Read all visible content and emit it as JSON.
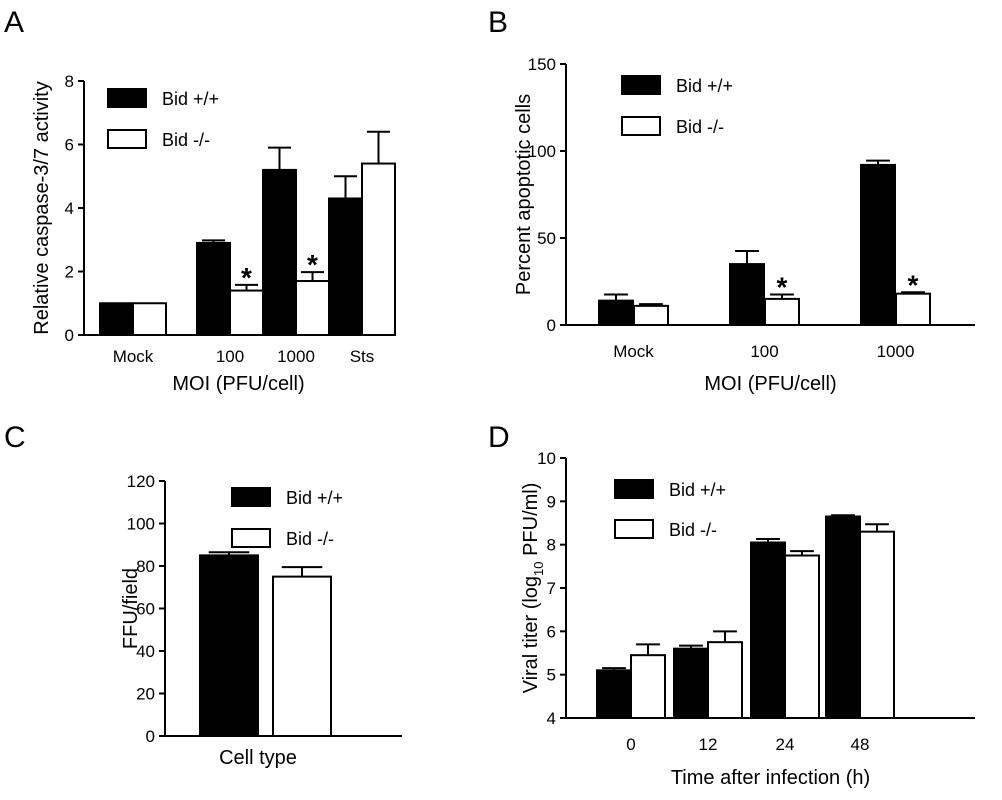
{
  "chart_data": [
    {
      "panel": "A",
      "type": "bar",
      "categories": [
        "Mock",
        "100",
        "1000",
        "Sts"
      ],
      "series": [
        {
          "name": "Bid +/+",
          "values": [
            1.0,
            2.9,
            5.2,
            4.3
          ],
          "errors": [
            0.0,
            0.08,
            0.7,
            0.7
          ]
        },
        {
          "name": "Bid -/-",
          "values": [
            1.0,
            1.4,
            1.7,
            5.4
          ],
          "errors": [
            0.0,
            0.18,
            0.28,
            1.0
          ]
        }
      ],
      "significant": [
        false,
        true,
        true,
        false
      ],
      "ylim": [
        0,
        8
      ],
      "yticks": [
        0,
        2,
        4,
        6,
        8
      ],
      "xlabel": "MOI (PFU/cell)",
      "ylabel": "Relative caspase-3/7 activity",
      "legend_position": "top-left"
    },
    {
      "panel": "B",
      "type": "bar",
      "categories": [
        "Mock",
        "100",
        "1000"
      ],
      "series": [
        {
          "name": "Bid +/+",
          "values": [
            14,
            35,
            92
          ],
          "errors": [
            3.5,
            7.5,
            2.5
          ]
        },
        {
          "name": "Bid -/-",
          "values": [
            11,
            15,
            18
          ],
          "errors": [
            1.0,
            2.5,
            0.8
          ]
        }
      ],
      "significant": [
        false,
        true,
        true
      ],
      "ylim": [
        0,
        150
      ],
      "yticks": [
        0,
        50,
        100,
        150
      ],
      "xlabel": "MOI (PFU/cell)",
      "ylabel": "Percent apoptotic cells",
      "legend_position": "top-left"
    },
    {
      "panel": "C",
      "type": "bar",
      "categories": [
        "Cell type"
      ],
      "series": [
        {
          "name": "Bid +/+",
          "values": [
            85
          ],
          "errors": [
            1.5
          ]
        },
        {
          "name": "Bid -/-",
          "values": [
            75
          ],
          "errors": [
            4.5
          ]
        }
      ],
      "significant": [
        false
      ],
      "ylim": [
        0,
        120
      ],
      "yticks": [
        0,
        20,
        40,
        60,
        80,
        100,
        120
      ],
      "xlabel": "",
      "ylabel": "FFU/field",
      "legend_position": "top-right"
    },
    {
      "panel": "D",
      "type": "bar",
      "categories": [
        "0",
        "12",
        "24",
        "48"
      ],
      "series": [
        {
          "name": "Bid +/+",
          "values": [
            5.1,
            5.6,
            8.05,
            8.65
          ],
          "errors": [
            0.05,
            0.07,
            0.08,
            0.03
          ]
        },
        {
          "name": "Bid -/-",
          "values": [
            5.45,
            5.75,
            7.75,
            8.3
          ],
          "errors": [
            0.25,
            0.25,
            0.1,
            0.17
          ]
        }
      ],
      "significant": [
        false,
        false,
        false,
        false
      ],
      "ylim": [
        4,
        10
      ],
      "yticks": [
        4,
        5,
        6,
        7,
        8,
        9,
        10
      ],
      "xlabel": "Time after infection (h)",
      "ylabel": "Viral titer (log10 PFU/ml)",
      "legend_position": "top-left"
    }
  ],
  "ylabel_d_parts": {
    "pre": "Viral titer (log",
    "sub": "10",
    "post": " PFU/ml)"
  },
  "significance_marker": "*",
  "colors": {
    "bid_wt": "#000000",
    "bid_ko": "#ffffff",
    "axis": "#000000"
  }
}
